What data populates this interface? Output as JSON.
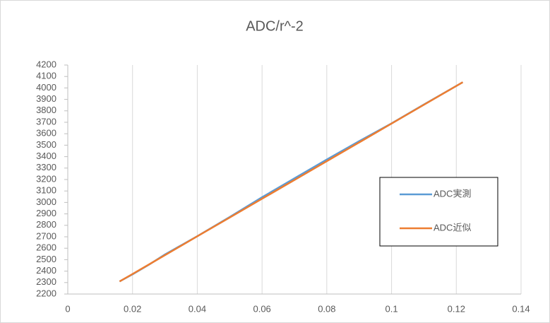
{
  "chart_data": {
    "type": "line",
    "title": "ADC/r^-2",
    "x": [
      0.016,
      0.02,
      0.025,
      0.03,
      0.04,
      0.05,
      0.06,
      0.07,
      0.08,
      0.09,
      0.1,
      0.11,
      0.122
    ],
    "series": [
      {
        "name": "ADC実測",
        "color": "#5b9bd5",
        "values": [
          2310,
          2372,
          2455,
          2545,
          2705,
          2872,
          3045,
          3210,
          3375,
          3535,
          3690,
          3855,
          4050
        ]
      },
      {
        "name": "ADC近似",
        "color": "#ed7d31",
        "values": [
          2310,
          2375,
          2457,
          2539,
          2704,
          2868,
          3032,
          3196,
          3360,
          3524,
          3689,
          3853,
          4050
        ]
      }
    ],
    "xlim": [
      0,
      0.14
    ],
    "xticks": [
      0,
      0.02,
      0.04,
      0.06,
      0.08,
      0.1,
      0.12,
      0.14
    ],
    "ylim": [
      2200,
      4200
    ],
    "yticks": [
      2200,
      2300,
      2400,
      2500,
      2600,
      2700,
      2800,
      2900,
      3000,
      3100,
      3200,
      3300,
      3400,
      3500,
      3600,
      3700,
      3800,
      3900,
      4000,
      4100,
      4200
    ],
    "xgrid": true,
    "legend": "right"
  }
}
